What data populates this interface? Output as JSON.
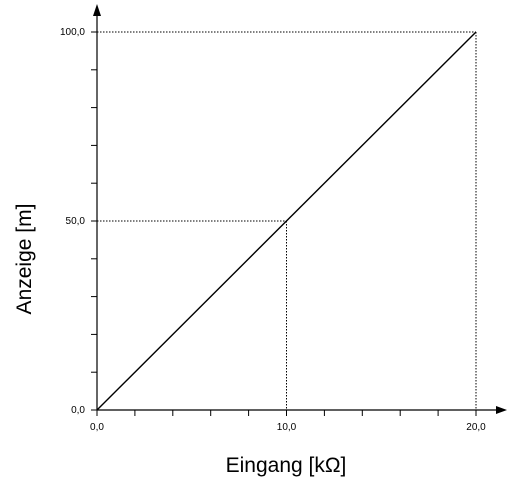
{
  "chart_data": {
    "type": "line",
    "title": "",
    "xlabel": "Eingang [kΩ]",
    "ylabel": "Anzeige [m]",
    "xlim": [
      0,
      20
    ],
    "ylim": [
      0,
      100
    ],
    "x_tick_labels": [
      {
        "value": 0,
        "label": "0,0"
      },
      {
        "value": 10,
        "label": "10,0"
      },
      {
        "value": 20,
        "label": "20,0"
      }
    ],
    "y_tick_labels": [
      {
        "value": 0,
        "label": "0,0"
      },
      {
        "value": 50,
        "label": "50,0"
      },
      {
        "value": 100,
        "label": "100,0"
      }
    ],
    "x_minor_ticks": [
      0,
      2,
      4,
      6,
      8,
      10,
      12,
      14,
      16,
      18,
      20
    ],
    "y_minor_ticks": [
      0,
      10,
      20,
      30,
      40,
      50,
      60,
      70,
      80,
      90,
      100
    ],
    "grid": false,
    "series": [
      {
        "x": [
          0,
          20
        ],
        "y": [
          0,
          100
        ],
        "color": "#000000"
      }
    ],
    "reference_points": [
      {
        "x": 10,
        "y": 50
      },
      {
        "x": 20,
        "y": 100
      }
    ]
  }
}
